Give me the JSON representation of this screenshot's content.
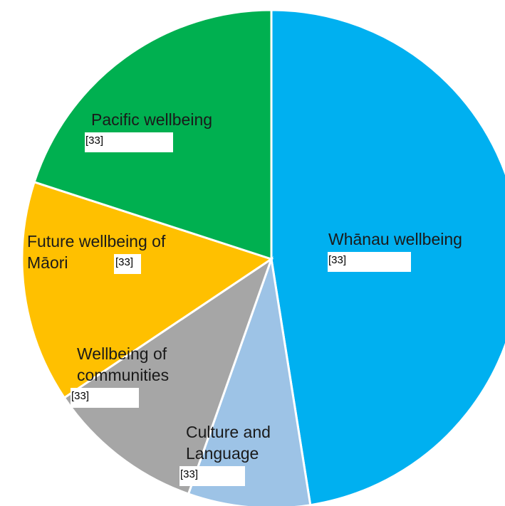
{
  "chart_data": {
    "type": "pie",
    "start_angle_deg": 0,
    "slices": [
      {
        "label_lines": [
          "Whānau wellbeing"
        ],
        "value": 47.5,
        "color": "#00B0F0",
        "ref": "[33]"
      },
      {
        "label_lines": [
          "Culture and",
          "Language"
        ],
        "value": 7.9,
        "color": "#9DC3E6",
        "ref": "[33]"
      },
      {
        "label_lines": [
          "Wellbeing of",
          "communities"
        ],
        "value": 10.2,
        "color": "#A6A6A6",
        "ref": "[33]"
      },
      {
        "label_lines": [
          "Future wellbeing of",
          "Māori"
        ],
        "value": 14.4,
        "color": "#FFC000",
        "ref": "[33]"
      },
      {
        "label_lines": [
          "Pacific wellbeing"
        ],
        "value": 20.0,
        "color": "#00B050",
        "ref": "[33]"
      }
    ],
    "legend": "none"
  }
}
